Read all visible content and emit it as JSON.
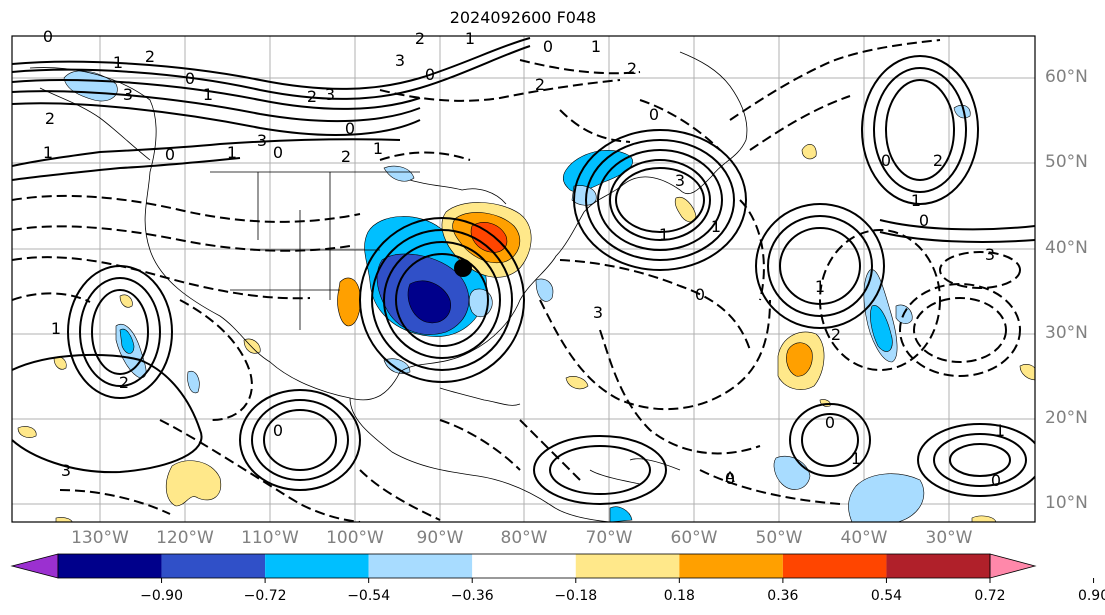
{
  "title": "2024092600 F048",
  "lat_labels": [
    "60°N",
    "50°N",
    "40°N",
    "30°N",
    "20°N",
    "10°N"
  ],
  "lon_labels": [
    "130°W",
    "120°W",
    "110°W",
    "100°W",
    "90°W",
    "80°W",
    "70°W",
    "60°W",
    "50°W",
    "40°W",
    "30°W"
  ],
  "colorbar": {
    "ticks": [
      "−0.90",
      "−0.72",
      "−0.54",
      "−0.36",
      "−0.18",
      "0.18",
      "0.36",
      "0.54",
      "0.72",
      "0.90"
    ],
    "colors": [
      "#9b30d0",
      "#00008b",
      "#3050c8",
      "#00bfff",
      "#a8dcff",
      "#ffffff",
      "#ffe88a",
      "#ffa000",
      "#ff4500",
      "#b0202a",
      "#ff88aa"
    ]
  },
  "contour_labels": [
    "0",
    "1",
    "2",
    "3",
    "0",
    "1",
    "2",
    "3",
    "0",
    "2",
    "1",
    "0",
    "1",
    "3",
    "2",
    "0",
    "1",
    "2",
    "3",
    "0",
    "1",
    "2",
    "0",
    "1",
    "2",
    "3",
    "0",
    "1",
    "3",
    "1",
    "0",
    "1",
    "0",
    "1",
    "2",
    "0",
    "1",
    "2",
    "3",
    "0",
    "1",
    "2",
    "3",
    "0",
    "1",
    "0"
  ],
  "marker_label": "0"
}
